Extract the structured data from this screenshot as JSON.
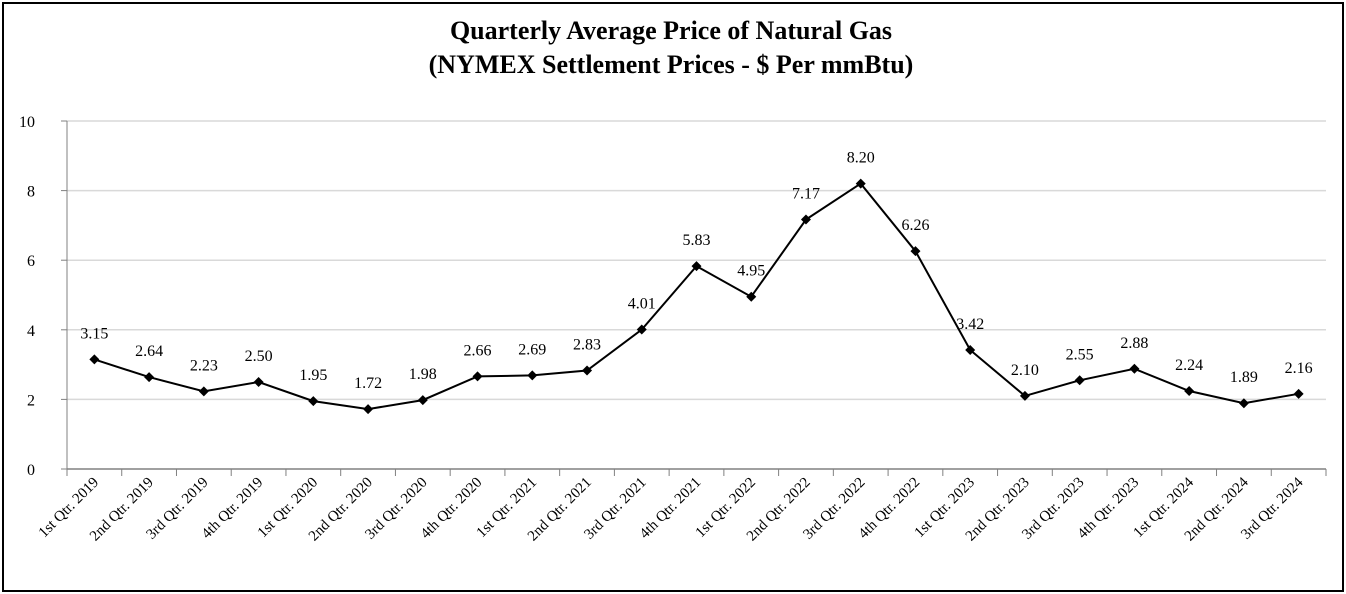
{
  "chart_data": {
    "type": "line",
    "title": "Quarterly Average Price of Natural Gas",
    "subtitle": "(NYMEX Settlement Prices - $ Per mmBtu)",
    "xlabel": "",
    "ylabel": "",
    "ylim": [
      0,
      10
    ],
    "yticks": [
      "0",
      "2",
      "4",
      "6",
      "8",
      "10"
    ],
    "grid": true,
    "categories": [
      "1st Qtr. 2019",
      "2nd Qtr. 2019",
      "3rd Qtr. 2019",
      "4th Qtr. 2019",
      "1st Qtr. 2020",
      "2nd Qtr. 2020",
      "3rd Qtr. 2020",
      "4th Qtr. 2020",
      "1st Qtr. 2021",
      "2nd Qtr. 2021",
      "3rd Qtr. 2021",
      "4th Qtr. 2021",
      "1st Qtr. 2022",
      "2nd Qtr. 2022",
      "3rd Qtr. 2022",
      "4th Qtr. 2022",
      "1st Qtr. 2023",
      "2nd Qtr. 2023",
      "3rd Qtr. 2023",
      "4th Qtr. 2023",
      "1st Qtr. 2024",
      "2nd Qtr. 2024",
      "3rd Qtr. 2024"
    ],
    "values": [
      3.15,
      2.64,
      2.23,
      2.5,
      1.95,
      1.72,
      1.98,
      2.66,
      2.69,
      2.83,
      4.01,
      5.83,
      4.95,
      7.17,
      8.2,
      6.26,
      3.42,
      2.1,
      2.55,
      2.88,
      2.24,
      1.89,
      2.16
    ],
    "data_labels": [
      "3.15",
      "2.64",
      "2.23",
      "2.50",
      "1.95",
      "1.72",
      "1.98",
      "2.66",
      "2.69",
      "2.83",
      "4.01",
      "5.83",
      "4.95",
      "7.17",
      "8.20",
      "6.26",
      "3.42",
      "2.10",
      "2.55",
      "2.88",
      "2.24",
      "1.89",
      "2.16"
    ],
    "colors": {
      "line": "#000000",
      "grid": "#d9d9d9",
      "axis": "#808080"
    }
  }
}
